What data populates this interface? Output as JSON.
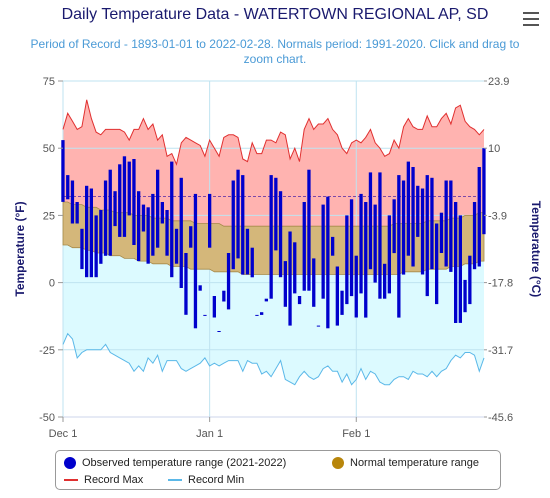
{
  "title": "Daily Temperature Data - WATERTOWN REGIONAL AP, SD",
  "subtitle": "Period of Record - 1893-01-01 to 2022-02-28. Normals period: 1991-2020. Click and drag to zoom chart.",
  "menu_icon": "hamburger-menu-icon",
  "colors": {
    "observed": "#0000cc",
    "normal_fill": "#d4b77a",
    "normal_marker": "#b8860b",
    "record_max_line": "#e03030",
    "record_max_fill": "#ffb3b0",
    "record_min_line": "#5bb8e8",
    "record_min_fill": "#dcfaff",
    "grid": "#bfe3f0",
    "axis_text": "#1a1a6e"
  },
  "legend": {
    "observed": "Observed temperature range (2021-2022)",
    "normal": "Normal temperature range",
    "record_max": "Record Max",
    "record_min": "Record Min"
  },
  "chart_data": {
    "type": "bar",
    "xlabel": "",
    "ylabel": "Temperature (°F)",
    "y2label": "Temperature (°C)",
    "ylim": [
      -50,
      75
    ],
    "yticks": [
      "75",
      "50",
      "25",
      "0",
      "-25",
      "-50"
    ],
    "y2ticks": [
      "23.9",
      "10",
      "-3.9",
      "-17.8",
      "-31.7",
      "-45.6"
    ],
    "xticks": [
      "Dec 1",
      "Jan 1",
      "Feb 1"
    ],
    "grid": true,
    "legend_position": "bottom",
    "start_day": "Dec 1",
    "days": 90,
    "freezing_line": 32,
    "observed_high": [
      53,
      40,
      38,
      30,
      20,
      36,
      35,
      25,
      27,
      38,
      42,
      34,
      44,
      47,
      45,
      46,
      34,
      29,
      28,
      33,
      42,
      30,
      27,
      45,
      20,
      39,
      11,
      21,
      33,
      -1,
      -12,
      33,
      -5,
      -18,
      -3,
      11,
      38,
      42,
      40,
      20,
      13,
      -12,
      -11,
      -7,
      40,
      39,
      34,
      8,
      19,
      15,
      -5,
      30,
      42,
      9,
      -16,
      29,
      32,
      17,
      6,
      -12,
      25,
      31,
      10,
      33,
      30,
      41,
      29,
      41,
      -6,
      25,
      31,
      40,
      38,
      45,
      43,
      36,
      35,
      40,
      39,
      22,
      26,
      38,
      38,
      30,
      25,
      1,
      10,
      30,
      43,
      50
    ],
    "observed_low": [
      30,
      31,
      22,
      22,
      5,
      2,
      2,
      2,
      7,
      10,
      10,
      21,
      17,
      17,
      25,
      14,
      8,
      19,
      7,
      10,
      13,
      22,
      10,
      2,
      7,
      -2,
      -12,
      13,
      -17,
      -3,
      -12,
      13,
      -13,
      -18,
      -7,
      -10,
      5,
      9,
      3,
      3,
      2,
      -12,
      -12,
      -6,
      -6,
      12,
      2,
      -9,
      -16,
      -4,
      -8,
      -3,
      -3,
      -9,
      -16,
      -6,
      -17,
      10,
      -16,
      -3,
      -8,
      -5,
      -13,
      -4,
      -13,
      5,
      0,
      -6,
      7,
      -4,
      11,
      -13,
      3,
      10,
      6,
      17,
      3,
      -5,
      5,
      -8,
      11,
      6,
      4,
      -15,
      -15,
      -11,
      -8,
      5,
      6,
      18
    ],
    "normal_high": [
      30,
      30,
      29,
      29,
      29,
      28,
      28,
      28,
      27,
      27,
      27,
      26,
      26,
      26,
      26,
      25,
      25,
      25,
      25,
      24,
      24,
      24,
      24,
      23,
      23,
      23,
      23,
      23,
      22,
      22,
      22,
      22,
      22,
      22,
      21,
      21,
      21,
      21,
      21,
      21,
      21,
      21,
      21,
      21,
      21,
      21,
      21,
      21,
      21,
      21,
      21,
      21,
      21,
      21,
      21,
      21,
      21,
      21,
      21,
      21,
      21,
      21,
      21,
      21,
      21,
      21,
      21,
      21,
      21,
      21,
      22,
      22,
      22,
      22,
      22,
      22,
      22,
      23,
      23,
      23,
      23,
      23,
      24,
      24,
      24,
      25,
      25,
      25,
      26,
      26
    ],
    "normal_low": [
      14,
      14,
      13,
      13,
      13,
      12,
      12,
      11,
      11,
      11,
      10,
      10,
      10,
      9,
      9,
      9,
      8,
      8,
      8,
      7,
      7,
      7,
      7,
      6,
      6,
      6,
      6,
      5,
      5,
      5,
      5,
      5,
      4,
      4,
      4,
      4,
      4,
      4,
      3,
      3,
      3,
      3,
      3,
      3,
      3,
      3,
      3,
      3,
      3,
      3,
      3,
      3,
      3,
      3,
      3,
      3,
      3,
      3,
      3,
      3,
      3,
      3,
      3,
      3,
      3,
      3,
      3,
      3,
      3,
      3,
      3,
      3,
      4,
      4,
      4,
      4,
      4,
      5,
      5,
      5,
      5,
      5,
      6,
      6,
      6,
      7,
      7,
      7,
      8,
      8
    ],
    "record_max": [
      57,
      63,
      60,
      57,
      58,
      68,
      61,
      56,
      55,
      57,
      57,
      57,
      57,
      56,
      53,
      57,
      57,
      61,
      57,
      59,
      53,
      55,
      47,
      48,
      44,
      52,
      54,
      53,
      52,
      51,
      47,
      53,
      50,
      47,
      54,
      55,
      55,
      54,
      46,
      45,
      52,
      48,
      48,
      53,
      53,
      52,
      56,
      55,
      46,
      50,
      45,
      57,
      61,
      57,
      59,
      59,
      61,
      57,
      55,
      50,
      48,
      52,
      53,
      52,
      54,
      57,
      52,
      50,
      47,
      48,
      53,
      50,
      58,
      61,
      58,
      57,
      57,
      62,
      58,
      58,
      61,
      63,
      59,
      65,
      66,
      60,
      58,
      57,
      55,
      57
    ],
    "record_min": [
      -23,
      -19,
      -21,
      -28,
      -26,
      -25,
      -25,
      -25,
      -25,
      -23,
      -26,
      -27,
      -28,
      -29,
      -30,
      -33,
      -31,
      -33,
      -28,
      -30,
      -27,
      -33,
      -29,
      -29,
      -29,
      -32,
      -33,
      -32,
      -31,
      -30,
      -28,
      -31,
      -30,
      -31,
      -30,
      -29,
      -29,
      -29,
      -33,
      -29,
      -30,
      -30,
      -34,
      -33,
      -35,
      -32,
      -29,
      -36,
      -37,
      -38,
      -35,
      -33,
      -35,
      -36,
      -35,
      -32,
      -31,
      -33,
      -33,
      -37,
      -34,
      -38,
      -36,
      -32,
      -36,
      -33,
      -34,
      -37,
      -38,
      -38,
      -36,
      -35,
      -35,
      -36,
      -33,
      -34,
      -34,
      -35,
      -33,
      -35,
      -33,
      -32,
      -29,
      -27,
      -28,
      -26,
      -26,
      -27,
      -33,
      -28
    ]
  }
}
